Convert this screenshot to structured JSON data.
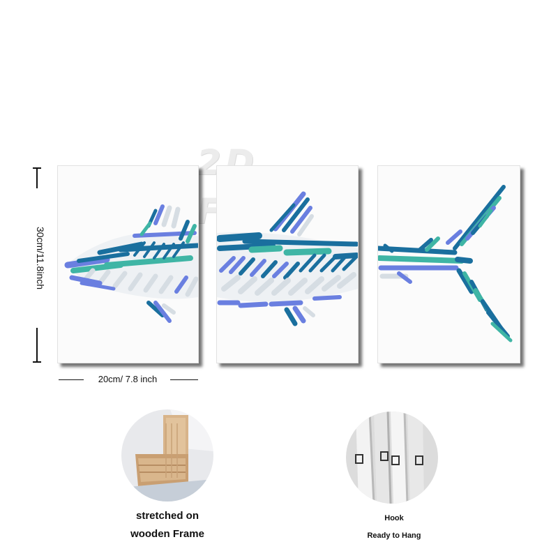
{
  "watermark": "2D Flat",
  "dimensions": {
    "height_label": "30cm/11.8inch",
    "width_label": "20cm/ 7.8 inch"
  },
  "colors": {
    "deep_blue": "#1a6f9e",
    "teal": "#3fb5a5",
    "periwinkle": "#6a7fe0",
    "pale_grey": "#d6dde3"
  },
  "details": {
    "frame": {
      "caption_line1": "stretched on",
      "caption_line2": "wooden Frame",
      "icon": "wooden-frame-photo"
    },
    "hook": {
      "caption_line1": "Hook",
      "caption_line2": "Ready to Hang",
      "icon": "hook-photo"
    }
  }
}
